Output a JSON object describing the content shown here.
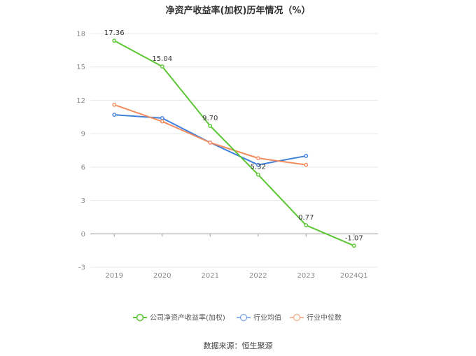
{
  "chart_data": {
    "type": "line",
    "title": "净资产收益率(加权)历年情况（%）",
    "categories": [
      "2019",
      "2020",
      "2021",
      "2022",
      "2023",
      "2024Q1"
    ],
    "yticks": [
      "-3",
      "0",
      "3",
      "6",
      "9",
      "12",
      "15",
      "18"
    ],
    "ylim": [
      -3,
      18
    ],
    "grid": true,
    "legend_position": "bottom",
    "series": [
      {
        "name": "公司净资产收益率(加权)",
        "color": "#5cc734",
        "values": [
          17.36,
          15.04,
          9.7,
          5.32,
          0.77,
          -1.07
        ],
        "labels": [
          "17.36",
          "15.04",
          "9.70",
          "5.32",
          "0.77",
          "-1.07"
        ]
      },
      {
        "name": "行业均值",
        "color": "#3f7fdc",
        "values": [
          10.7,
          10.4,
          8.2,
          6.2,
          7.0,
          null
        ]
      },
      {
        "name": "行业中位数",
        "color": "#f28c5e",
        "values": [
          11.6,
          10.1,
          8.2,
          6.8,
          6.2,
          null
        ]
      }
    ]
  },
  "source_text": "数据来源：恒生聚源"
}
